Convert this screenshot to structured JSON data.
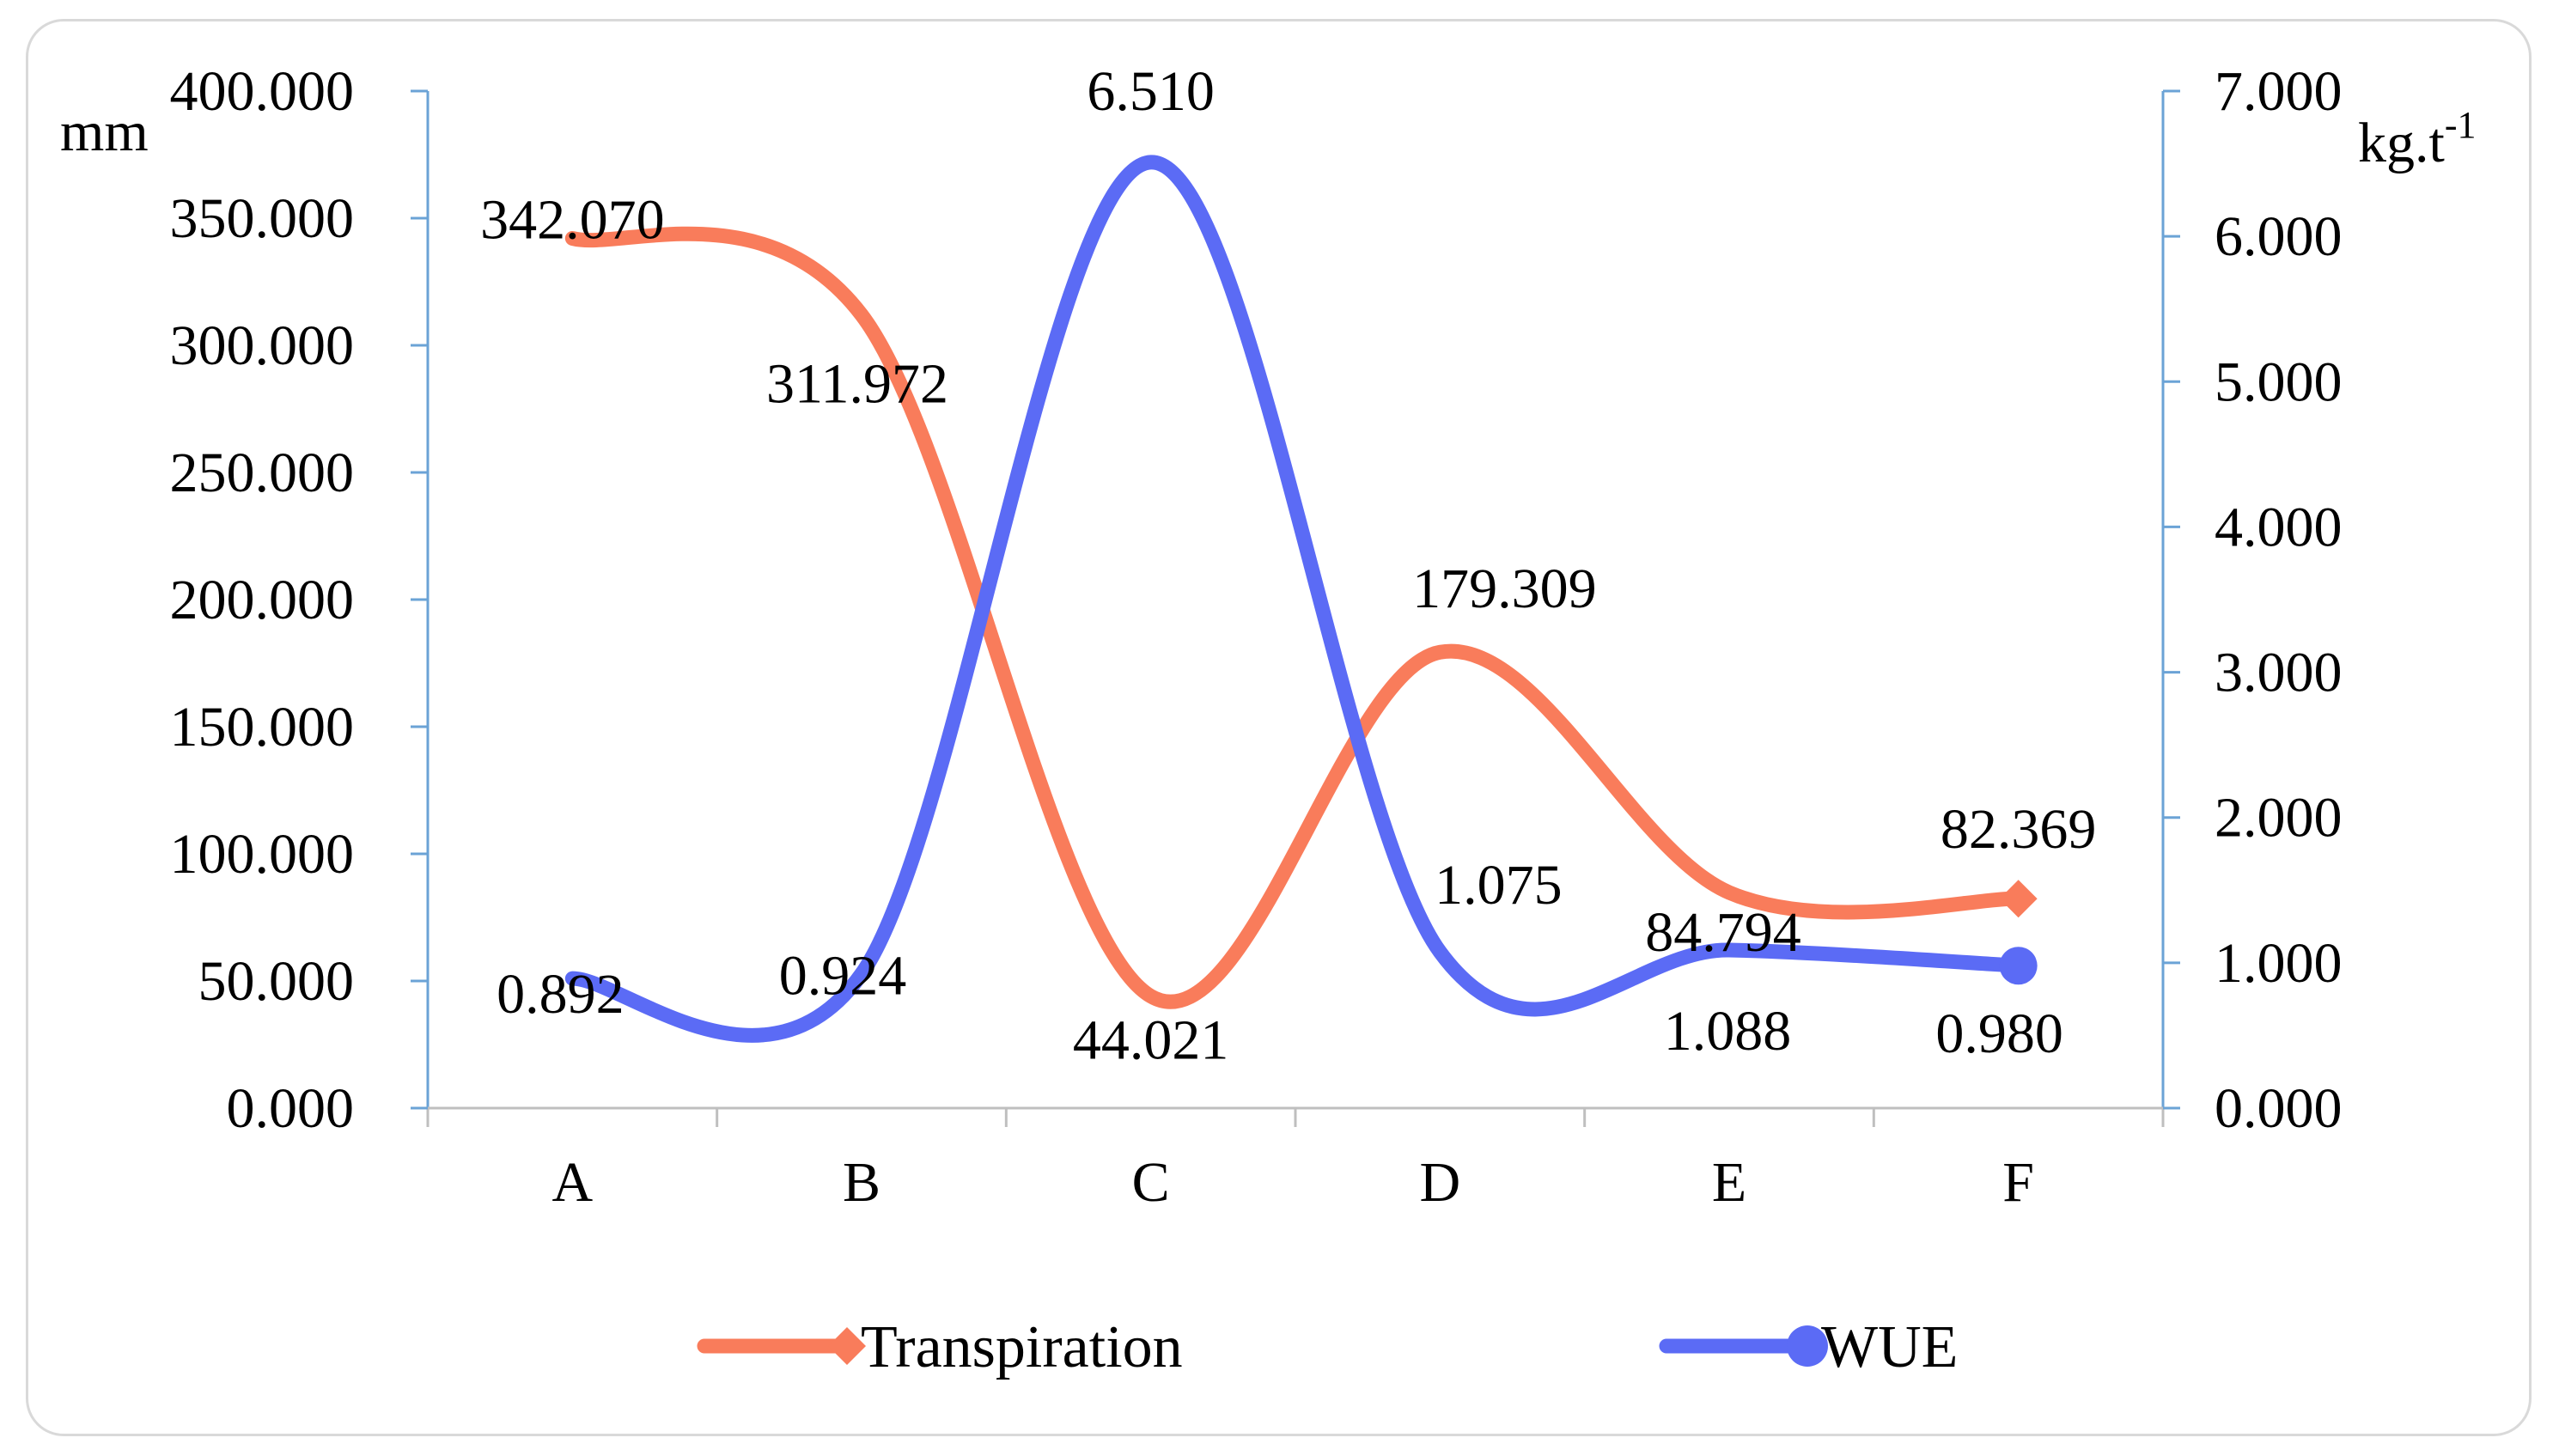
{
  "chart_data": {
    "type": "line",
    "categories": [
      "A",
      "B",
      "C",
      "D",
      "E",
      "F"
    ],
    "series": [
      {
        "name": "Transpiration",
        "axis": "left",
        "color": "#f97c5b",
        "marker": "diamond",
        "values": [
          342.07,
          311.972,
          44.021,
          179.309,
          84.794,
          82.369
        ],
        "labels": [
          "342.070",
          "311.972",
          "44.021",
          "179.309",
          "84.794",
          "82.369"
        ]
      },
      {
        "name": "WUE",
        "axis": "right",
        "color": "#5b6bf5",
        "marker": "circle",
        "values": [
          0.892,
          0.924,
          6.51,
          1.075,
          1.088,
          0.98
        ],
        "labels": [
          "0.892",
          "0.924",
          "6.510",
          "1.075",
          "1.088",
          "0.980"
        ]
      }
    ],
    "left_axis": {
      "unit": "mm",
      "ylim": [
        0,
        400
      ],
      "ticks": [
        "0.000",
        "50.000",
        "100.000",
        "150.000",
        "200.000",
        "250.000",
        "300.000",
        "350.000",
        "400.000"
      ]
    },
    "right_axis": {
      "unit": "kg.t",
      "unit_superscript": "-1",
      "ylim": [
        0,
        7
      ],
      "ticks": [
        "0.000",
        "1.000",
        "2.000",
        "3.000",
        "4.000",
        "5.000",
        "6.000",
        "7.000"
      ]
    },
    "axis_color": "#6ba3d6",
    "grid": false,
    "legend_position": "bottom"
  }
}
